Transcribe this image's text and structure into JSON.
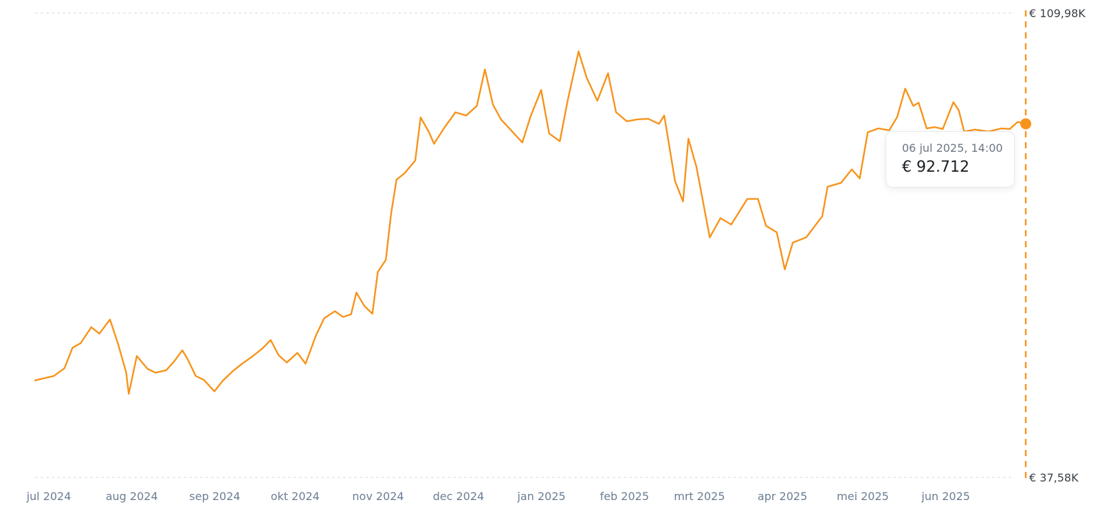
{
  "chart_data": {
    "type": "line",
    "title": "",
    "xlabel": "",
    "ylabel": "",
    "grid": "horizontal dashed lines at the axis extremes",
    "x_ticks": [
      "jul 2024",
      "aug 2024",
      "sep 2024",
      "okt 2024",
      "nov 2024",
      "dec 2024",
      "jan 2025",
      "feb 2025",
      "mrt 2025",
      "apr 2025",
      "mei 2025",
      "jun 2025"
    ],
    "y_tick_labels": [
      "€ 109,98K",
      "€ 37,58K"
    ],
    "ylim": [
      37580,
      109980
    ],
    "xlim": [
      "2024-07-01",
      "2025-07-06"
    ],
    "series": [
      {
        "color": "#f7931a",
        "points": [
          [
            "2024-07-01",
            52700
          ],
          [
            "2024-07-05",
            53100
          ],
          [
            "2024-07-08",
            53400
          ],
          [
            "2024-07-12",
            54600
          ],
          [
            "2024-07-15",
            57800
          ],
          [
            "2024-07-18",
            58500
          ],
          [
            "2024-07-22",
            61000
          ],
          [
            "2024-07-25",
            60000
          ],
          [
            "2024-07-29",
            62200
          ],
          [
            "2024-08-01",
            58400
          ],
          [
            "2024-08-04",
            54000
          ],
          [
            "2024-08-05",
            50600
          ],
          [
            "2024-08-08",
            56500
          ],
          [
            "2024-08-12",
            54500
          ],
          [
            "2024-08-15",
            53900
          ],
          [
            "2024-08-19",
            54300
          ],
          [
            "2024-08-22",
            55700
          ],
          [
            "2024-08-25",
            57400
          ],
          [
            "2024-08-27",
            56000
          ],
          [
            "2024-08-30",
            53400
          ],
          [
            "2024-09-02",
            52800
          ],
          [
            "2024-09-06",
            51000
          ],
          [
            "2024-09-09",
            52600
          ],
          [
            "2024-09-13",
            54200
          ],
          [
            "2024-09-16",
            55200
          ],
          [
            "2024-09-20",
            56400
          ],
          [
            "2024-09-24",
            57700
          ],
          [
            "2024-09-27",
            59000
          ],
          [
            "2024-09-30",
            56600
          ],
          [
            "2024-10-03",
            55500
          ],
          [
            "2024-10-07",
            57000
          ],
          [
            "2024-10-10",
            55300
          ],
          [
            "2024-10-14",
            59800
          ],
          [
            "2024-10-17",
            62400
          ],
          [
            "2024-10-21",
            63500
          ],
          [
            "2024-10-24",
            62600
          ],
          [
            "2024-10-27",
            63000
          ],
          [
            "2024-10-29",
            66400
          ],
          [
            "2024-11-01",
            64300
          ],
          [
            "2024-11-04",
            63100
          ],
          [
            "2024-11-06",
            69600
          ],
          [
            "2024-11-09",
            71500
          ],
          [
            "2024-11-11",
            78800
          ],
          [
            "2024-11-13",
            84000
          ],
          [
            "2024-11-16",
            85000
          ],
          [
            "2024-11-20",
            87000
          ],
          [
            "2024-11-22",
            93700
          ],
          [
            "2024-11-25",
            91500
          ],
          [
            "2024-11-27",
            89600
          ],
          [
            "2024-12-01",
            92200
          ],
          [
            "2024-12-05",
            94500
          ],
          [
            "2024-12-09",
            94000
          ],
          [
            "2024-12-13",
            95500
          ],
          [
            "2024-12-16",
            101200
          ],
          [
            "2024-12-19",
            95700
          ],
          [
            "2024-12-22",
            93400
          ],
          [
            "2024-12-26",
            91600
          ],
          [
            "2024-12-30",
            89800
          ],
          [
            "2025-01-02",
            93800
          ],
          [
            "2025-01-06",
            98000
          ],
          [
            "2025-01-09",
            91200
          ],
          [
            "2025-01-13",
            90000
          ],
          [
            "2025-01-16",
            96500
          ],
          [
            "2025-01-20",
            104000
          ],
          [
            "2025-01-23",
            99900
          ],
          [
            "2025-01-27",
            96300
          ],
          [
            "2025-01-31",
            100600
          ],
          [
            "2025-02-03",
            94500
          ],
          [
            "2025-02-07",
            93100
          ],
          [
            "2025-02-11",
            93400
          ],
          [
            "2025-02-15",
            93500
          ],
          [
            "2025-02-19",
            92700
          ],
          [
            "2025-02-21",
            94000
          ],
          [
            "2025-02-25",
            83800
          ],
          [
            "2025-02-28",
            80600
          ],
          [
            "2025-03-02",
            90400
          ],
          [
            "2025-03-05",
            86000
          ],
          [
            "2025-03-10",
            75000
          ],
          [
            "2025-03-14",
            78000
          ],
          [
            "2025-03-18",
            77000
          ],
          [
            "2025-03-24",
            81000
          ],
          [
            "2025-03-28",
            81000
          ],
          [
            "2025-03-31",
            76800
          ],
          [
            "2025-04-04",
            75800
          ],
          [
            "2025-04-07",
            70000
          ],
          [
            "2025-04-10",
            74200
          ],
          [
            "2025-04-15",
            75000
          ],
          [
            "2025-04-21",
            78300
          ],
          [
            "2025-04-23",
            82900
          ],
          [
            "2025-04-28",
            83500
          ],
          [
            "2025-05-02",
            85600
          ],
          [
            "2025-05-05",
            84200
          ],
          [
            "2025-05-08",
            91400
          ],
          [
            "2025-05-12",
            92000
          ],
          [
            "2025-05-16",
            91700
          ],
          [
            "2025-05-19",
            93800
          ],
          [
            "2025-05-22",
            98200
          ],
          [
            "2025-05-25",
            95500
          ],
          [
            "2025-05-27",
            96000
          ],
          [
            "2025-05-30",
            92000
          ],
          [
            "2025-06-02",
            92200
          ],
          [
            "2025-06-05",
            91900
          ],
          [
            "2025-06-09",
            96100
          ],
          [
            "2025-06-11",
            94800
          ],
          [
            "2025-06-13",
            91500
          ],
          [
            "2025-06-17",
            91800
          ],
          [
            "2025-06-22",
            91500
          ],
          [
            "2025-06-27",
            92000
          ],
          [
            "2025-06-30",
            91900
          ],
          [
            "2025-07-03",
            93000
          ],
          [
            "2025-07-06",
            92712
          ]
        ]
      }
    ],
    "crosshair": {
      "date": "2025-07-06"
    },
    "tooltip": {
      "date_label": "06 jul 2025, 14:00",
      "value_label": "€ 92.712"
    }
  }
}
